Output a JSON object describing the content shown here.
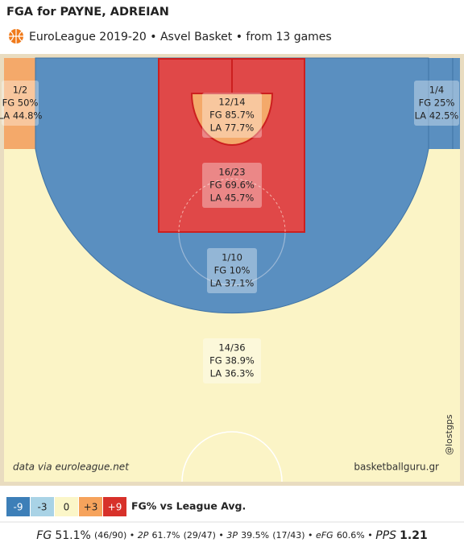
{
  "chart_data": {
    "type": "shot-chart",
    "title": "FGA for PAYNE, ADREIAN",
    "subtitle": "EuroLeague 2019-20 • Asvel Basket • from  13 games",
    "source": "data via euroleague.net",
    "site": "basketballguru.gr",
    "handle": "@lostgps",
    "zones": [
      {
        "name": "left-corner-three",
        "color": "#f4a96a",
        "made": "1/2",
        "fg": "FG 50%",
        "la": "LA 44.8%"
      },
      {
        "name": "right-corner-three",
        "color": "#5a8fc0",
        "made": "1/4",
        "fg": "FG 25%",
        "la": "LA 42.5%"
      },
      {
        "name": "restricted-area",
        "color": "#f4a96a",
        "made": "12/14",
        "fg": "FG 85.7%",
        "la": "LA 77.7%"
      },
      {
        "name": "paint",
        "color": "#e04848",
        "made": "16/23",
        "fg": "FG 69.6%",
        "la": "LA 45.7%"
      },
      {
        "name": "mid-range",
        "color": "#5a8fc0",
        "made": "1/10",
        "fg": "FG 10%",
        "la": "LA 37.1%"
      },
      {
        "name": "above-break-three",
        "color": "#fbf4c6",
        "made": "14/36",
        "fg": "FG 38.9%",
        "la": "LA 36.3%"
      }
    ],
    "legend": {
      "title": "FG% vs League Avg.",
      "items": [
        {
          "label": "-9",
          "color": "#3d7fb8"
        },
        {
          "label": "-3",
          "color": "#a9d3e6"
        },
        {
          "label": "0",
          "color": "#fbf6c8"
        },
        {
          "label": "+3",
          "color": "#f6a35c"
        },
        {
          "label": "+9",
          "color": "#d7312a"
        }
      ]
    },
    "stats": [
      {
        "label": "FG",
        "value": "51.1%",
        "detail": "(46/90)"
      },
      {
        "label": "2P",
        "value": "61.7%",
        "detail": "(29/47)"
      },
      {
        "label": "3P",
        "value": "39.5%",
        "detail": "(17/43)"
      },
      {
        "label": "eFG",
        "value": "60.6%"
      },
      {
        "label": "PPS",
        "value": "1.21"
      }
    ]
  }
}
